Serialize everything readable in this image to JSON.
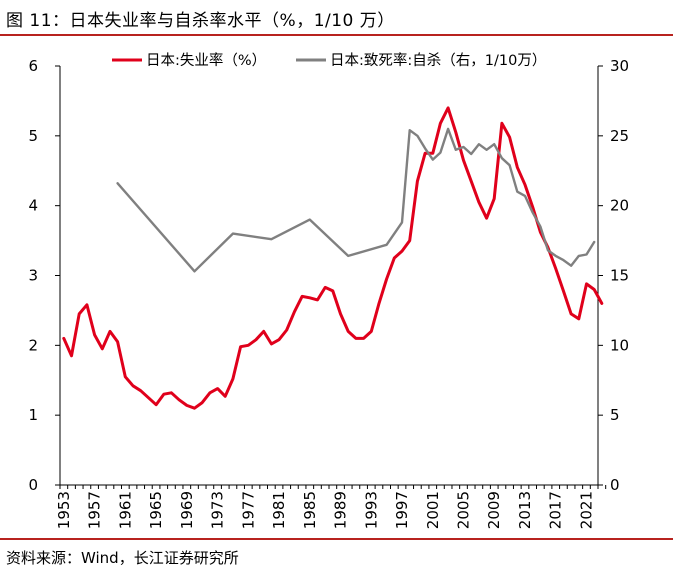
{
  "figure": {
    "title": "图 11：日本失业率与自杀率水平（%，1/10 万）",
    "source": "资料来源：Wind，长江证券研究所"
  },
  "chart_data": {
    "type": "line",
    "legend_position": "top",
    "grid": false,
    "x_ticks": [
      "1953",
      "1957",
      "1961",
      "1965",
      "1969",
      "1973",
      "1977",
      "1981",
      "1985",
      "1989",
      "1993",
      "1997",
      "2001",
      "2005",
      "2009",
      "2013",
      "2017",
      "2021"
    ],
    "xlim": [
      1953,
      2023
    ],
    "y_left": {
      "ticks": [
        "0",
        "1",
        "2",
        "3",
        "4",
        "5",
        "6"
      ],
      "range": [
        0,
        6
      ]
    },
    "y_right": {
      "ticks": [
        "0",
        "5",
        "10",
        "15",
        "20",
        "25",
        "30"
      ],
      "range": [
        0,
        30
      ]
    },
    "series": [
      {
        "name": "日本:失业率（%）",
        "axis": "left",
        "color": "#e0001b",
        "x": [
          1953,
          1954,
          1955,
          1956,
          1957,
          1958,
          1959,
          1960,
          1961,
          1962,
          1963,
          1964,
          1965,
          1966,
          1967,
          1968,
          1969,
          1970,
          1971,
          1972,
          1973,
          1974,
          1975,
          1976,
          1977,
          1978,
          1979,
          1980,
          1981,
          1982,
          1983,
          1984,
          1985,
          1986,
          1987,
          1988,
          1989,
          1990,
          1991,
          1992,
          1993,
          1994,
          1995,
          1996,
          1997,
          1998,
          1999,
          2000,
          2001,
          2002,
          2003,
          2004,
          2005,
          2006,
          2007,
          2008,
          2009,
          2010,
          2011,
          2012,
          2013,
          2014,
          2015,
          2016,
          2017,
          2018,
          2019,
          2020,
          2021,
          2022,
          2023
        ],
        "values": [
          2.1,
          1.85,
          2.45,
          2.58,
          2.15,
          1.95,
          2.2,
          2.05,
          1.55,
          1.42,
          1.35,
          1.25,
          1.15,
          1.3,
          1.32,
          1.22,
          1.14,
          1.1,
          1.18,
          1.32,
          1.38,
          1.27,
          1.52,
          1.98,
          2.0,
          2.08,
          2.2,
          2.02,
          2.08,
          2.22,
          2.48,
          2.7,
          2.68,
          2.65,
          2.83,
          2.78,
          2.45,
          2.2,
          2.1,
          2.1,
          2.2,
          2.6,
          2.95,
          3.25,
          3.35,
          3.5,
          4.35,
          4.75,
          4.75,
          5.18,
          5.4,
          5.05,
          4.65,
          4.35,
          4.05,
          3.82,
          4.1,
          5.18,
          4.98,
          4.55,
          4.3,
          3.98,
          3.62,
          3.4,
          3.1,
          2.78,
          2.45,
          2.38,
          2.88,
          2.8,
          2.6
        ]
      },
      {
        "name": "日本:致死率:自杀（右，1/10万）",
        "axis": "right",
        "color": "#808080",
        "x": [
          1960,
          1970,
          1975,
          1980,
          1985,
          1990,
          1995,
          1997,
          1998,
          1999,
          2000,
          2001,
          2002,
          2003,
          2004,
          2005,
          2006,
          2007,
          2008,
          2009,
          2010,
          2011,
          2012,
          2013,
          2014,
          2015,
          2016,
          2017,
          2018,
          2019,
          2020,
          2021,
          2022
        ],
        "values": [
          21.6,
          15.3,
          18.0,
          17.6,
          19.0,
          16.4,
          17.2,
          18.8,
          25.4,
          25.0,
          24.1,
          23.3,
          23.8,
          25.5,
          24.0,
          24.2,
          23.7,
          24.4,
          24.0,
          24.4,
          23.4,
          22.9,
          21.0,
          20.7,
          19.5,
          18.5,
          16.8,
          16.4,
          16.1,
          15.7,
          16.4,
          16.5,
          17.4
        ]
      }
    ]
  }
}
